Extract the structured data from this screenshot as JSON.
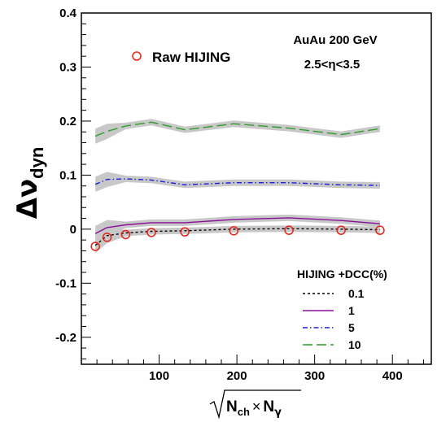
{
  "chart_data": {
    "type": "line",
    "annotations": [
      "AuAu 200 GeV",
      "2.5<η<3.5"
    ],
    "xlim": [
      0,
      450
    ],
    "ylim": [
      -0.25,
      0.4
    ],
    "x_ticks": [
      100,
      200,
      300,
      400
    ],
    "x_tick_labels": [
      "100",
      "200",
      "300",
      "400"
    ],
    "y_ticks": [
      -0.2,
      -0.1,
      0,
      0.1,
      0.2,
      0.3,
      0.4
    ],
    "y_tick_labels": [
      "-0.2",
      "-0.1",
      "0",
      "0.1",
      "0.2",
      "0.3",
      "0.4"
    ],
    "legend_title": "HIJING +DCC(%)",
    "legend_position": "bottom-right",
    "series": [
      {
        "name": "Raw HIJING",
        "style": "markers",
        "color": "#e8211b",
        "x": [
          18,
          33,
          57,
          90,
          133,
          196,
          267,
          334,
          384
        ],
        "y": [
          -0.032,
          -0.015,
          -0.01,
          -0.006,
          -0.005,
          -0.003,
          -0.002,
          -0.002,
          -0.002
        ]
      },
      {
        "name": "0.1",
        "style": "dashed",
        "color": "#000000",
        "x": [
          18,
          33,
          57,
          90,
          133,
          196,
          267,
          334,
          384
        ],
        "y": [
          -0.03,
          -0.012,
          -0.007,
          -0.004,
          -0.003,
          0.0,
          0.001,
          0.0,
          -0.001
        ]
      },
      {
        "name": "1",
        "style": "solid",
        "color": "#8b0f9a",
        "x": [
          18,
          33,
          57,
          90,
          133,
          196,
          267,
          334,
          384
        ],
        "y": [
          -0.008,
          0.003,
          0.008,
          0.012,
          0.012,
          0.018,
          0.021,
          0.016,
          0.01
        ]
      },
      {
        "name": "5",
        "style": "dash-dot",
        "color": "#1b1fe0",
        "x": [
          18,
          33,
          57,
          90,
          133,
          196,
          267,
          334,
          384
        ],
        "y": [
          0.083,
          0.092,
          0.093,
          0.091,
          0.082,
          0.086,
          0.086,
          0.082,
          0.081
        ]
      },
      {
        "name": "10",
        "style": "long-dash",
        "color": "#2f9d2b",
        "x": [
          18,
          33,
          57,
          90,
          133,
          196,
          267,
          334,
          384
        ],
        "y": [
          0.172,
          0.181,
          0.191,
          0.198,
          0.184,
          0.195,
          0.187,
          0.175,
          0.186
        ]
      }
    ]
  }
}
